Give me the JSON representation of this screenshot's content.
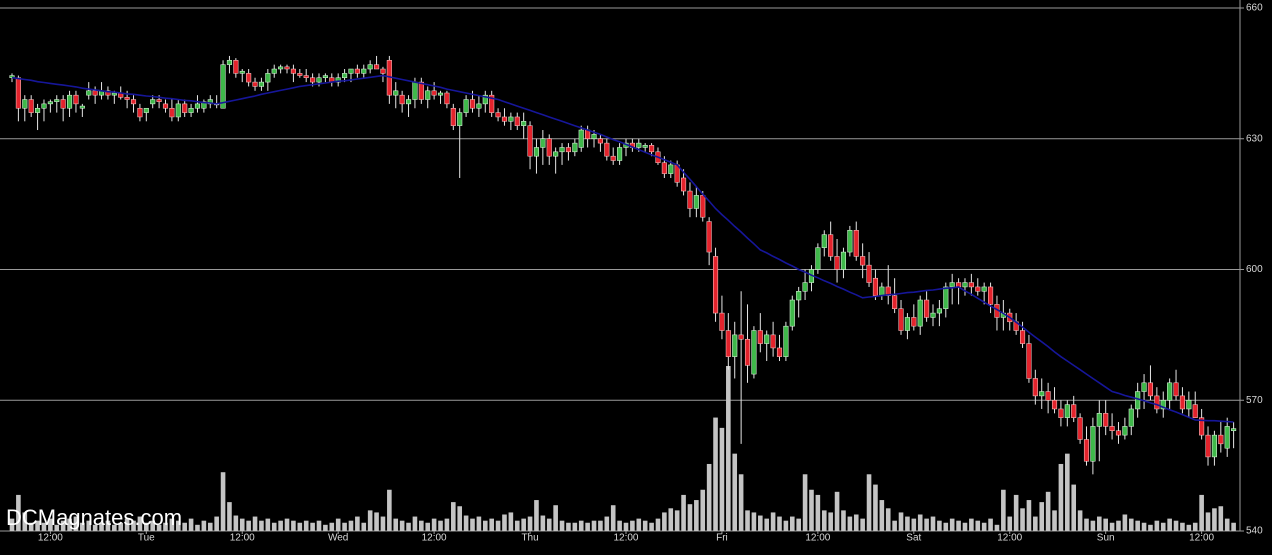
{
  "chart_data": {
    "type": "candlestick",
    "watermark": "DCMagnates.com",
    "xlim": [
      -1,
      192
    ],
    "ylim": [
      540,
      660
    ],
    "yticks": [
      540,
      570,
      600,
      630,
      660
    ],
    "grid": true,
    "xticks": [
      {
        "value": 6,
        "label": "12:00"
      },
      {
        "value": 21,
        "label": "Tue"
      },
      {
        "value": 36,
        "label": "12:00"
      },
      {
        "value": 51,
        "label": "Wed"
      },
      {
        "value": 66,
        "label": "12:00"
      },
      {
        "value": 81,
        "label": "Thu"
      },
      {
        "value": 96,
        "label": "12:00"
      },
      {
        "value": 111,
        "label": "Fri"
      },
      {
        "value": 126,
        "label": "12:00"
      },
      {
        "value": 141,
        "label": "Sat"
      },
      {
        "value": 156,
        "label": "12:00"
      },
      {
        "value": 171,
        "label": "Sun"
      },
      {
        "value": 186,
        "label": "12:00"
      }
    ],
    "up_color": "#3fb84a",
    "down_color": "#e3232c",
    "doji_color": "#ffffff",
    "ohlc": [
      [
        644,
        645,
        643,
        644.5
      ],
      [
        644,
        644.5,
        634,
        637
      ],
      [
        637,
        640,
        634,
        639
      ],
      [
        639,
        640,
        635,
        636
      ],
      [
        636,
        638,
        632,
        637
      ],
      [
        637,
        639,
        634,
        638
      ],
      [
        638,
        639,
        636,
        638.5
      ],
      [
        638.5,
        640,
        636,
        639
      ],
      [
        639,
        640,
        634,
        637
      ],
      [
        637,
        641,
        635,
        640
      ],
      [
        640,
        641,
        636,
        638
      ],
      [
        637,
        638,
        635,
        637.5
      ],
      [
        640,
        643,
        639,
        641
      ],
      [
        641,
        642,
        638,
        640
      ],
      [
        640,
        643,
        639,
        641
      ],
      [
        641,
        642,
        639,
        640
      ],
      [
        640,
        641,
        638,
        640.5
      ],
      [
        640.5,
        642,
        639,
        639.5
      ],
      [
        639.5,
        641,
        637,
        639
      ],
      [
        639,
        640,
        636,
        638
      ],
      [
        637,
        638,
        634,
        635
      ],
      [
        636,
        637,
        634,
        637
      ],
      [
        638,
        640,
        637,
        639
      ],
      [
        639,
        640,
        637,
        638.5
      ],
      [
        638,
        639,
        636,
        637
      ],
      [
        637,
        639,
        634,
        635
      ],
      [
        635,
        639,
        634,
        638
      ],
      [
        638,
        639,
        635,
        636
      ],
      [
        636,
        638,
        635,
        637
      ],
      [
        637,
        640,
        636,
        638
      ],
      [
        637,
        639,
        636,
        638.5
      ],
      [
        638,
        640,
        637,
        639
      ],
      [
        638,
        640,
        637,
        638
      ],
      [
        637,
        648,
        637,
        647
      ],
      [
        647,
        649,
        645,
        648
      ],
      [
        648,
        648.5,
        644,
        645
      ],
      [
        645,
        646,
        643,
        645.5
      ],
      [
        645,
        646,
        642,
        643
      ],
      [
        643,
        644,
        641,
        642
      ],
      [
        642,
        644,
        641,
        643
      ],
      [
        643,
        646,
        641,
        645
      ],
      [
        645,
        647,
        644,
        646
      ],
      [
        646,
        647,
        645,
        646.5
      ],
      [
        646.5,
        647,
        645,
        646
      ],
      [
        646,
        647,
        643,
        645
      ],
      [
        645,
        646,
        644,
        644.5
      ],
      [
        644.5,
        646,
        643,
        644
      ],
      [
        644,
        645,
        642,
        643
      ],
      [
        643,
        645,
        642,
        644
      ],
      [
        644,
        645,
        643,
        644.5
      ],
      [
        644,
        645,
        642,
        643
      ],
      [
        643,
        645,
        642,
        644
      ],
      [
        644,
        646,
        643,
        645
      ],
      [
        645,
        646,
        643,
        646
      ],
      [
        646,
        647,
        644,
        645
      ],
      [
        645,
        647,
        644,
        646
      ],
      [
        646,
        648,
        645,
        647
      ],
      [
        647,
        649,
        646,
        646
      ],
      [
        646,
        646.5,
        643,
        645
      ],
      [
        648,
        649,
        638,
        640
      ],
      [
        640,
        643,
        637,
        641
      ],
      [
        640,
        641,
        636,
        638
      ],
      [
        638,
        640,
        635,
        639
      ],
      [
        639,
        644,
        637,
        643
      ],
      [
        643,
        644,
        638,
        639
      ],
      [
        639,
        642,
        637,
        641
      ],
      [
        641,
        643,
        639,
        640
      ],
      [
        640,
        641,
        638,
        640.5
      ],
      [
        640.5,
        641,
        637,
        638
      ],
      [
        637,
        638,
        632,
        633
      ],
      [
        633,
        637,
        621,
        636
      ],
      [
        636,
        640,
        635,
        639
      ],
      [
        639,
        641,
        636,
        637
      ],
      [
        637,
        640,
        635,
        638
      ],
      [
        638,
        641,
        636,
        640
      ],
      [
        640,
        641,
        635,
        636
      ],
      [
        636,
        637,
        634,
        635
      ],
      [
        635,
        637,
        633,
        634
      ],
      [
        634,
        636,
        632,
        635
      ],
      [
        635,
        636,
        632,
        633
      ],
      [
        633,
        636,
        630,
        634
      ],
      [
        633,
        634,
        623,
        626
      ],
      [
        626,
        630,
        622,
        628
      ],
      [
        628,
        632,
        624,
        630
      ],
      [
        630,
        631,
        624,
        626
      ],
      [
        626,
        628,
        622,
        627
      ],
      [
        627,
        629,
        624,
        628
      ],
      [
        628,
        629,
        625,
        627
      ],
      [
        627,
        630,
        626,
        629
      ],
      [
        628,
        633,
        627,
        632
      ],
      [
        632,
        633,
        628,
        630
      ],
      [
        630,
        632,
        628,
        631
      ],
      [
        630,
        631,
        627,
        629
      ],
      [
        629,
        630,
        625,
        626
      ],
      [
        626,
        628,
        624,
        625
      ],
      [
        625,
        629,
        624,
        628
      ],
      [
        628,
        630,
        626,
        629
      ],
      [
        629,
        630,
        627,
        628
      ],
      [
        628,
        630,
        627,
        629
      ],
      [
        628,
        629,
        627,
        628.5
      ],
      [
        628.5,
        629,
        626,
        627
      ],
      [
        627,
        628,
        624,
        624.5
      ],
      [
        624.5,
        626,
        621,
        622
      ],
      [
        622,
        625,
        621,
        624
      ],
      [
        624,
        625,
        619,
        620
      ],
      [
        621,
        623,
        617,
        618
      ],
      [
        618,
        620,
        612,
        614
      ],
      [
        614,
        619,
        612,
        617
      ],
      [
        617,
        618,
        611,
        612
      ],
      [
        611,
        612,
        601,
        604
      ],
      [
        603,
        605,
        588,
        590
      ],
      [
        590,
        594,
        584,
        586
      ],
      [
        586,
        590,
        577,
        580
      ],
      [
        580,
        588,
        575,
        585
      ],
      [
        585,
        595,
        560,
        584
      ],
      [
        584,
        592,
        574,
        578
      ],
      [
        576,
        587,
        575,
        586
      ],
      [
        586,
        590,
        581,
        583
      ],
      [
        583,
        586,
        579,
        585
      ],
      [
        585,
        588,
        580,
        582
      ],
      [
        582,
        585,
        579,
        580
      ],
      [
        580,
        588,
        579,
        587
      ],
      [
        587,
        594,
        586,
        593
      ],
      [
        593,
        596,
        589,
        595
      ],
      [
        595,
        600,
        593,
        597
      ],
      [
        597,
        601,
        595,
        600
      ],
      [
        600,
        606,
        599,
        605
      ],
      [
        605,
        609,
        603,
        608
      ],
      [
        608,
        611,
        602,
        603
      ],
      [
        603,
        607,
        597,
        600
      ],
      [
        600,
        605,
        598,
        604
      ],
      [
        604,
        610,
        603,
        609
      ],
      [
        609,
        611,
        602,
        603
      ],
      [
        603,
        606,
        598,
        601
      ],
      [
        601,
        604,
        596,
        597
      ],
      [
        598,
        600,
        593,
        594
      ],
      [
        594,
        597,
        593,
        596
      ],
      [
        596,
        601,
        592,
        594
      ],
      [
        594,
        598,
        590,
        591
      ],
      [
        591,
        593,
        585,
        586
      ],
      [
        586,
        590,
        584,
        589
      ],
      [
        589,
        592,
        586,
        587
      ],
      [
        587,
        594,
        585,
        593
      ],
      [
        593,
        595,
        588,
        589
      ],
      [
        589,
        592,
        587,
        590
      ],
      [
        590,
        593,
        587,
        591
      ],
      [
        591,
        597,
        589,
        596
      ],
      [
        596,
        599,
        592,
        597
      ],
      [
        597,
        598,
        592,
        596
      ],
      [
        596,
        598,
        594,
        597
      ],
      [
        597,
        599,
        594,
        596
      ],
      [
        596,
        598,
        594,
        595
      ],
      [
        595,
        597,
        592,
        596
      ],
      [
        596,
        597,
        590,
        592
      ],
      [
        592,
        594,
        586,
        589
      ],
      [
        589,
        593,
        586,
        590
      ],
      [
        590,
        591,
        586,
        588
      ],
      [
        588,
        590,
        585,
        586
      ],
      [
        586,
        588,
        582,
        583
      ],
      [
        583,
        585,
        574,
        575
      ],
      [
        575,
        577,
        569,
        571
      ],
      [
        571,
        575,
        568,
        572
      ],
      [
        572,
        574,
        567,
        570
      ],
      [
        570,
        573,
        567,
        568
      ],
      [
        568,
        570,
        564,
        566
      ],
      [
        566,
        570,
        564,
        569
      ],
      [
        569,
        571,
        565,
        566
      ],
      [
        566,
        567,
        560,
        561
      ],
      [
        561,
        564,
        555,
        556
      ],
      [
        556,
        566,
        553,
        564
      ],
      [
        564,
        570,
        556,
        567
      ],
      [
        567,
        570,
        562,
        564
      ],
      [
        564,
        567,
        561,
        563
      ],
      [
        563,
        565,
        560,
        562
      ],
      [
        562,
        566,
        561,
        564
      ],
      [
        564,
        569,
        562,
        568
      ],
      [
        568,
        574,
        566,
        572
      ],
      [
        572,
        576,
        568,
        574
      ],
      [
        574,
        578,
        570,
        571
      ],
      [
        571,
        573,
        567,
        568
      ],
      [
        568,
        572,
        566,
        570
      ],
      [
        570,
        575,
        568,
        574
      ],
      [
        574,
        577,
        570,
        571
      ],
      [
        571,
        573,
        567,
        568
      ],
      [
        568,
        572,
        566,
        570
      ],
      [
        569,
        572,
        566,
        566
      ],
      [
        566,
        568,
        561,
        562
      ],
      [
        562,
        564,
        555,
        557
      ],
      [
        557,
        563,
        555,
        562
      ],
      [
        562,
        565,
        558,
        560
      ],
      [
        559,
        566,
        557,
        564
      ],
      [
        563,
        565,
        559,
        563.5
      ]
    ],
    "series": [
      {
        "color": "#16169a",
        "values": [
          644,
          643.8,
          643.6,
          643.4,
          643.1,
          642.9,
          642.7,
          642.5,
          642.3,
          642.1,
          641.9,
          641.6,
          641.4,
          641.2,
          641,
          640.8,
          640.7,
          640.5,
          640.3,
          640.2,
          640,
          639.8,
          639.7,
          639.5,
          639.3,
          639.2,
          639,
          638.8,
          638.7,
          638.5,
          638.3,
          638.2,
          638,
          638.3,
          638.6,
          638.9,
          639.2,
          639.5,
          639.8,
          640.2,
          640.5,
          640.8,
          641.1,
          641.4,
          641.7,
          642,
          642.2,
          642.4,
          642.6,
          642.8,
          643,
          643.2,
          643.3,
          643.5,
          643.7,
          643.9,
          644.1,
          644.3,
          644.5,
          644.2,
          643.9,
          643.6,
          643.3,
          643,
          642.7,
          642.4,
          642.1,
          641.8,
          641.4,
          641.1,
          640.8,
          640.5,
          640.2,
          639.9,
          639.6,
          639.3,
          639,
          638.5,
          638,
          637.5,
          637,
          636.5,
          636,
          635.5,
          635,
          634.5,
          634,
          633.5,
          633,
          632.5,
          632,
          631.5,
          631,
          630.4,
          629.8,
          629.3,
          628.7,
          628.1,
          627.5,
          626.9,
          626.3,
          625.8,
          625.2,
          624.6,
          624,
          622.3,
          620.7,
          619,
          617.3,
          615.7,
          614,
          612.6,
          611.3,
          609.9,
          608.6,
          607.2,
          605.9,
          604.5,
          603.8,
          603,
          602.3,
          601.5,
          600.8,
          600,
          599.4,
          598.7,
          598.1,
          597.4,
          596.8,
          596.1,
          595.5,
          594.8,
          594.2,
          593.5,
          593.7,
          593.8,
          594,
          594.2,
          594.3,
          594.5,
          594.7,
          594.8,
          595,
          595.2,
          595.3,
          595.5,
          595.7,
          595.8,
          596,
          595.1,
          594.3,
          593.4,
          592.5,
          591.6,
          590.8,
          589.9,
          589,
          587.9,
          586.8,
          585.6,
          584.5,
          583.4,
          582.3,
          581.1,
          580,
          579,
          578,
          577,
          576,
          575,
          574,
          573,
          572,
          571.6,
          571.1,
          570.7,
          570.3,
          569.9,
          569.4,
          569,
          568.4,
          567.8,
          567.3,
          566.7,
          566.1,
          565.5,
          565.4,
          565.3,
          565.3,
          565.2,
          565.1,
          565
        ]
      }
    ],
    "volume": {
      "color": "#c4c4c4",
      "values": [
        12,
        35,
        18,
        8,
        10,
        8,
        12,
        6,
        10,
        12,
        14,
        8,
        10,
        6,
        8,
        10,
        6,
        8,
        12,
        10,
        14,
        8,
        10,
        6,
        8,
        12,
        10,
        8,
        12,
        6,
        10,
        8,
        14,
        57,
        28,
        15,
        12,
        10,
        14,
        10,
        12,
        8,
        10,
        12,
        10,
        8,
        10,
        8,
        10,
        6,
        8,
        12,
        8,
        10,
        14,
        8,
        20,
        18,
        14,
        40,
        12,
        10,
        8,
        14,
        10,
        8,
        12,
        10,
        12,
        28,
        24,
        15,
        12,
        14,
        10,
        12,
        10,
        16,
        18,
        10,
        12,
        14,
        30,
        15,
        12,
        25,
        10,
        8,
        8,
        10,
        8,
        10,
        10,
        14,
        25,
        10,
        8,
        10,
        12,
        10,
        8,
        12,
        18,
        22,
        20,
        35,
        26,
        30,
        40,
        65,
        110,
        100,
        160,
        75,
        55,
        20,
        18,
        15,
        12,
        18,
        14,
        10,
        14,
        12,
        55,
        40,
        35,
        20,
        18,
        38,
        20,
        14,
        16,
        12,
        55,
        45,
        30,
        22,
        10,
        18,
        14,
        12,
        16,
        12,
        14,
        10,
        8,
        12,
        10,
        8,
        12,
        10,
        8,
        12,
        6,
        40,
        14,
        35,
        22,
        30,
        14,
        28,
        38,
        20,
        65,
        75,
        45,
        20,
        12,
        10,
        14,
        12,
        8,
        10,
        16,
        12,
        10,
        8,
        6,
        10,
        8,
        12,
        10,
        8,
        6,
        8,
        35,
        18,
        22,
        24,
        12,
        8
      ]
    }
  }
}
